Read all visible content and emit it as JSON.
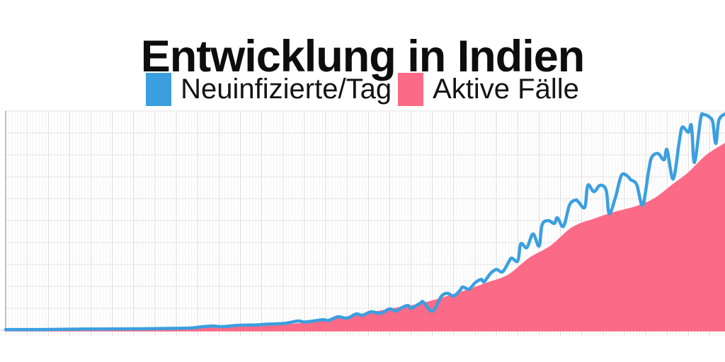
{
  "title": "Entwicklung in Indien",
  "legend": [
    {
      "label": "Neuinfizierte/Tag",
      "color": "#3b9fdf"
    },
    {
      "label": "Aktive Fälle",
      "color": "#fb6a86"
    }
  ],
  "chart_data": {
    "type": "line",
    "title": "Entwicklung in Indien",
    "xlabel": "",
    "ylabel": "",
    "axis_tick_labels_visible": false,
    "legend_position": "top",
    "x": {
      "unit": "day-index",
      "range": [
        0,
        236
      ]
    },
    "y": {
      "unit": "percent-of-plot-height",
      "range": [
        0,
        100
      ]
    },
    "grid": {
      "on": true,
      "x_minor_every_days": 1,
      "x_major_every_days": 7,
      "y_divisions": 10,
      "minor_color": "#f2f2f2",
      "major_color": "#d9d9d9",
      "h_color": "#e4e4e4",
      "tick_color": "#ececec",
      "axis_color": "#ababab",
      "baseline_color": "#cccccc"
    },
    "series": [
      {
        "name": "Aktive Fälle",
        "type": "area",
        "color": "#fb6a86",
        "points": [
          [
            0,
            0.2
          ],
          [
            21,
            0.2
          ],
          [
            45,
            0.3
          ],
          [
            63,
            0.5
          ],
          [
            77,
            1.0
          ],
          [
            89,
            1.8
          ],
          [
            100,
            3.2
          ],
          [
            110,
            5.2
          ],
          [
            119,
            7.4
          ],
          [
            128,
            9.7
          ],
          [
            137,
            11.9
          ],
          [
            149,
            16.8
          ],
          [
            158,
            21.2
          ],
          [
            165,
            24.8
          ],
          [
            172,
            32.6
          ],
          [
            179,
            38.1
          ],
          [
            186,
            46.5
          ],
          [
            193,
            50.3
          ],
          [
            200,
            53.5
          ],
          [
            207,
            56.1
          ],
          [
            213,
            59.7
          ],
          [
            219,
            66.1
          ],
          [
            224,
            71.3
          ],
          [
            230,
            79.4
          ],
          [
            236,
            84.8
          ]
        ]
      },
      {
        "name": "Neuinfizierte/Tag",
        "type": "line",
        "color": "#3b9fdf",
        "line_width": 4.5,
        "points": [
          [
            0,
            0.3
          ],
          [
            12,
            0.3
          ],
          [
            26,
            0.5
          ],
          [
            40,
            0.6
          ],
          [
            54,
            0.8
          ],
          [
            61,
            1.0
          ],
          [
            64,
            1.5
          ],
          [
            68,
            1.9
          ],
          [
            71,
            1.6
          ],
          [
            75,
            2.1
          ],
          [
            78,
            2.3
          ],
          [
            82,
            2.4
          ],
          [
            85,
            2.7
          ],
          [
            89,
            2.9
          ],
          [
            92,
            3.2
          ],
          [
            96,
            4.2
          ],
          [
            98,
            3.7
          ],
          [
            101,
            4.2
          ],
          [
            104,
            4.8
          ],
          [
            106,
            4.5
          ],
          [
            109,
            6.1
          ],
          [
            112,
            5.5
          ],
          [
            115,
            7.4
          ],
          [
            117,
            6.8
          ],
          [
            120,
            8.4
          ],
          [
            123,
            7.7
          ],
          [
            126,
            9.7
          ],
          [
            128,
            8.7
          ],
          [
            130,
            10.3
          ],
          [
            132,
            11.3
          ],
          [
            133,
            10.0
          ],
          [
            136,
            12.3
          ],
          [
            137,
            12.9
          ],
          [
            140,
            8.7
          ],
          [
            143,
            15.5
          ],
          [
            145,
            16.8
          ],
          [
            147,
            15.6
          ],
          [
            149,
            18.1
          ],
          [
            150,
            19.7
          ],
          [
            152,
            18.7
          ],
          [
            154,
            21.6
          ],
          [
            156,
            23.2
          ],
          [
            157,
            22.1
          ],
          [
            159,
            25.8
          ],
          [
            161,
            27.7
          ],
          [
            163,
            26.6
          ],
          [
            165,
            31.0
          ],
          [
            166,
            32.9
          ],
          [
            168,
            31.6
          ],
          [
            169,
            39.4
          ],
          [
            171,
            37.7
          ],
          [
            173,
            43.9
          ],
          [
            175,
            38.4
          ],
          [
            176,
            48.1
          ],
          [
            178,
            50.0
          ],
          [
            180,
            48.7
          ],
          [
            181,
            51.3
          ],
          [
            183,
            47.4
          ],
          [
            185,
            57.1
          ],
          [
            187,
            59.4
          ],
          [
            188,
            58.4
          ],
          [
            190,
            56.1
          ],
          [
            191,
            66.1
          ],
          [
            193,
            63.2
          ],
          [
            195,
            66.1
          ],
          [
            197,
            63.9
          ],
          [
            198,
            53.2
          ],
          [
            200,
            60.3
          ],
          [
            202,
            70.6
          ],
          [
            204,
            70.3
          ],
          [
            205,
            68.7
          ],
          [
            207,
            66.5
          ],
          [
            209,
            57.1
          ],
          [
            211,
            73.2
          ],
          [
            212,
            79.0
          ],
          [
            214,
            80.6
          ],
          [
            216,
            77.7
          ],
          [
            217,
            82.3
          ],
          [
            219,
            69.0
          ],
          [
            221,
            86.1
          ],
          [
            222,
            92.6
          ],
          [
            224,
            90.3
          ],
          [
            225,
            93.2
          ],
          [
            226,
            76.5
          ],
          [
            228,
            96.5
          ],
          [
            229,
            98.4
          ],
          [
            231,
            97.1
          ],
          [
            232,
            94.8
          ],
          [
            233,
            85.2
          ],
          [
            234,
            95.8
          ],
          [
            236,
            98.7
          ]
        ]
      }
    ]
  }
}
